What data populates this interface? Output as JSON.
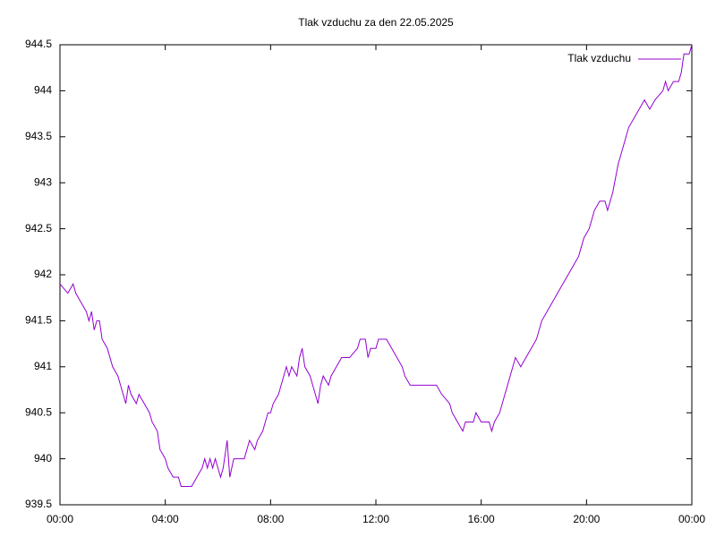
{
  "chart_data": {
    "type": "line",
    "title": "Tlak vzduchu za den 22.05.2025",
    "legend_position": "top-right",
    "grid": false,
    "xlim": [
      0,
      24
    ],
    "xticks": [
      {
        "value": 0,
        "label": "00:00"
      },
      {
        "value": 4,
        "label": "04:00"
      },
      {
        "value": 8,
        "label": "08:00"
      },
      {
        "value": 12,
        "label": "12:00"
      },
      {
        "value": 16,
        "label": "16:00"
      },
      {
        "value": 20,
        "label": "20:00"
      },
      {
        "value": 24,
        "label": "00:00"
      }
    ],
    "ylim": [
      939.5,
      944.5
    ],
    "yticks": [
      939.5,
      940,
      940.5,
      941,
      941.5,
      942,
      942.5,
      943,
      943.5,
      944,
      944.5
    ],
    "x": [
      0,
      0.3,
      0.5,
      0.6,
      0.8,
      1.0,
      1.1,
      1.2,
      1.3,
      1.4,
      1.5,
      1.6,
      1.8,
      2.0,
      2.2,
      2.4,
      2.5,
      2.6,
      2.7,
      2.9,
      3.0,
      3.2,
      3.4,
      3.5,
      3.7,
      3.8,
      4.0,
      4.1,
      4.3,
      4.5,
      4.6,
      5.0,
      5.2,
      5.4,
      5.5,
      5.6,
      5.7,
      5.8,
      5.9,
      6.0,
      6.1,
      6.2,
      6.35,
      6.45,
      6.6,
      7.0,
      7.2,
      7.4,
      7.5,
      7.7,
      7.8,
      7.9,
      8.0,
      8.1,
      8.3,
      8.4,
      8.5,
      8.6,
      8.7,
      8.8,
      9.0,
      9.1,
      9.2,
      9.3,
      9.5,
      9.6,
      9.8,
      9.9,
      10.0,
      10.2,
      10.3,
      10.5,
      10.7,
      11.0,
      11.3,
      11.4,
      11.6,
      11.7,
      11.8,
      12.0,
      12.1,
      12.4,
      12.6,
      12.8,
      13.0,
      13.1,
      13.3,
      13.6,
      14.3,
      14.5,
      14.8,
      14.9,
      15.1,
      15.3,
      15.4,
      15.7,
      15.8,
      16.0,
      16.3,
      16.4,
      16.5,
      16.7,
      16.9,
      17.1,
      17.3,
      17.5,
      17.7,
      17.9,
      18.1,
      18.3,
      18.5,
      18.7,
      18.9,
      19.1,
      19.3,
      19.5,
      19.7,
      19.9,
      20.1,
      20.3,
      20.5,
      20.7,
      20.8,
      21.0,
      21.2,
      21.4,
      21.6,
      21.8,
      22.0,
      22.2,
      22.4,
      22.6,
      22.9,
      23.0,
      23.1,
      23.3,
      23.5,
      23.6,
      23.7,
      23.9,
      24.0
    ],
    "series": [
      {
        "name": "Tlak vzduchu",
        "color": "#9400d3",
        "values": [
          941.9,
          941.8,
          941.9,
          941.8,
          941.7,
          941.6,
          941.5,
          941.6,
          941.4,
          941.5,
          941.5,
          941.3,
          941.2,
          941.0,
          940.9,
          940.7,
          940.6,
          940.8,
          940.7,
          940.6,
          940.7,
          940.6,
          940.5,
          940.4,
          940.3,
          940.1,
          940.0,
          939.9,
          939.8,
          939.8,
          939.7,
          939.7,
          939.8,
          939.9,
          940.0,
          939.9,
          940.0,
          939.9,
          940.0,
          939.9,
          939.8,
          939.9,
          940.2,
          939.8,
          940.0,
          940.0,
          940.2,
          940.1,
          940.2,
          940.3,
          940.4,
          940.5,
          940.5,
          940.6,
          940.7,
          940.8,
          940.9,
          941.0,
          940.9,
          941.0,
          940.9,
          941.1,
          941.2,
          941.0,
          940.9,
          940.8,
          940.6,
          940.8,
          940.9,
          940.8,
          940.9,
          941.0,
          941.1,
          941.1,
          941.2,
          941.3,
          941.3,
          941.1,
          941.2,
          941.2,
          941.3,
          941.3,
          941.2,
          941.1,
          941.0,
          940.9,
          940.8,
          940.8,
          940.8,
          940.7,
          940.6,
          940.5,
          940.4,
          940.3,
          940.4,
          940.4,
          940.5,
          940.4,
          940.4,
          940.3,
          940.4,
          940.5,
          940.7,
          940.9,
          941.1,
          941.0,
          941.1,
          941.2,
          941.3,
          941.5,
          941.6,
          941.7,
          941.8,
          941.9,
          942.0,
          942.1,
          942.2,
          942.4,
          942.5,
          942.7,
          942.8,
          942.8,
          942.7,
          942.9,
          943.2,
          943.4,
          943.6,
          943.7,
          943.8,
          943.9,
          943.8,
          943.9,
          944.0,
          944.1,
          944.0,
          944.1,
          944.1,
          944.2,
          944.4,
          944.4,
          944.5
        ]
      }
    ]
  }
}
